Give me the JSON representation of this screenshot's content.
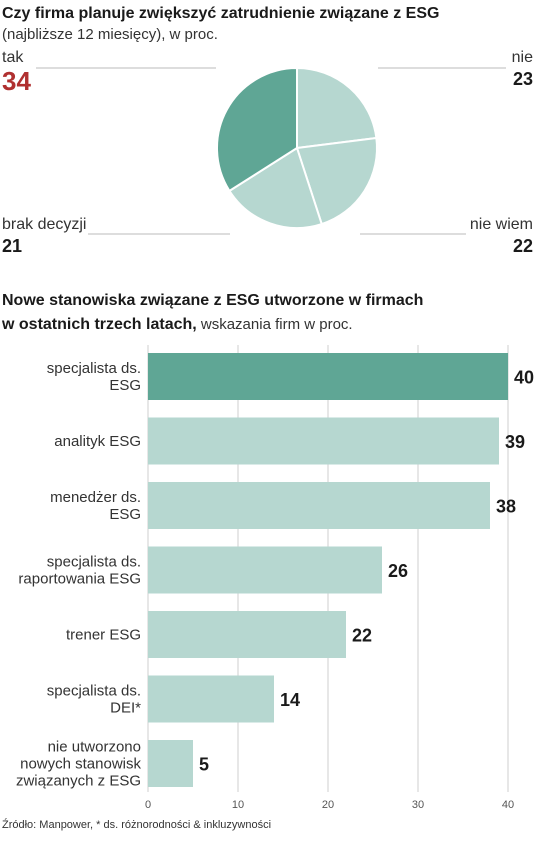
{
  "colors": {
    "highlight": "#5fa695",
    "light": "#b6d7d0",
    "accent_red": "#b03030",
    "grid": "#cfcfcf",
    "leader": "#bbbbbb"
  },
  "chart_data": [
    {
      "type": "pie",
      "title": "Czy firma  planuje zwiększyć zatrudnienie związane z ESG",
      "subtitle": "(najbliższe 12 miesięcy), w proc.",
      "slices": [
        {
          "label": "tak",
          "value": 34,
          "highlight": true
        },
        {
          "label": "nie",
          "value": 23,
          "highlight": false
        },
        {
          "label": "nie wiem",
          "value": 22,
          "highlight": false
        },
        {
          "label": "brak decyzji",
          "value": 21,
          "highlight": false
        }
      ]
    },
    {
      "type": "bar",
      "orientation": "horizontal",
      "title_bold": "Nowe stanowiska związane z ESG utworzone w firmach",
      "title_bold_line2": "w ostatnich trzech latach,",
      "title_rest": " wskazania firm w proc.",
      "categories": [
        [
          "specjalista ds.",
          "ESG"
        ],
        [
          "analityk ESG"
        ],
        [
          "menedżer ds.",
          "ESG"
        ],
        [
          "specjalista ds.",
          "raportowania ESG"
        ],
        [
          "trener ESG"
        ],
        [
          "specjalista ds.",
          "DEI*"
        ],
        [
          "nie utworzono",
          "nowych stanowisk",
          "związanych z ESG"
        ]
      ],
      "values": [
        40,
        39,
        38,
        26,
        22,
        14,
        5
      ],
      "highlight_index": 0,
      "xlim": [
        0,
        40
      ],
      "xticks": [
        0,
        10,
        20,
        30,
        40
      ],
      "grid": true
    }
  ],
  "source": "Źródło: Manpower, * ds. różnorodności & inkluzywności"
}
